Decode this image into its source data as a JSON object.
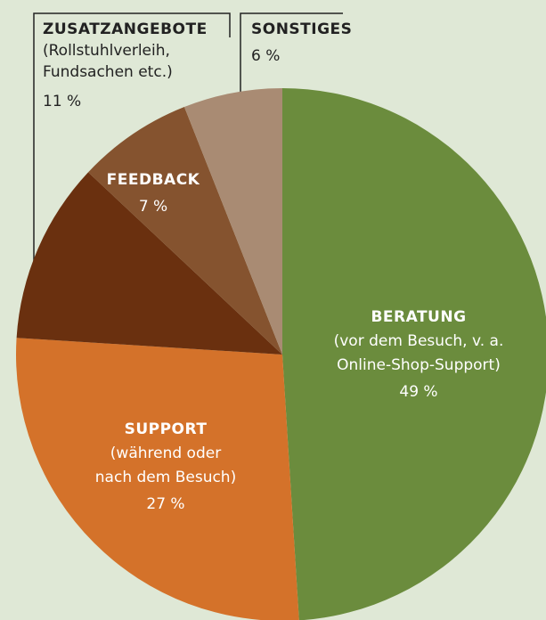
{
  "chart_data": {
    "type": "pie",
    "categories": [
      "BERATUNG",
      "SUPPORT",
      "ZUSATZANGEBOTE",
      "FEEDBACK",
      "SONSTIGES"
    ],
    "descriptions": [
      [
        "(vor dem Besuch, v. a.",
        "Online-Shop-Support)"
      ],
      [
        "(während oder",
        "nach dem Besuch)"
      ],
      [
        "(Rollstuhlverleih,",
        "Fundsachen etc.)"
      ],
      [],
      []
    ],
    "values": [
      49,
      27,
      11,
      7,
      6
    ],
    "value_labels": [
      "49 %",
      "27 %",
      "11 %",
      "7 %",
      "6 %"
    ],
    "colors": [
      "#6b8c3d",
      "#d4722a",
      "#6a300f",
      "#85532f",
      "#a98b73"
    ]
  }
}
